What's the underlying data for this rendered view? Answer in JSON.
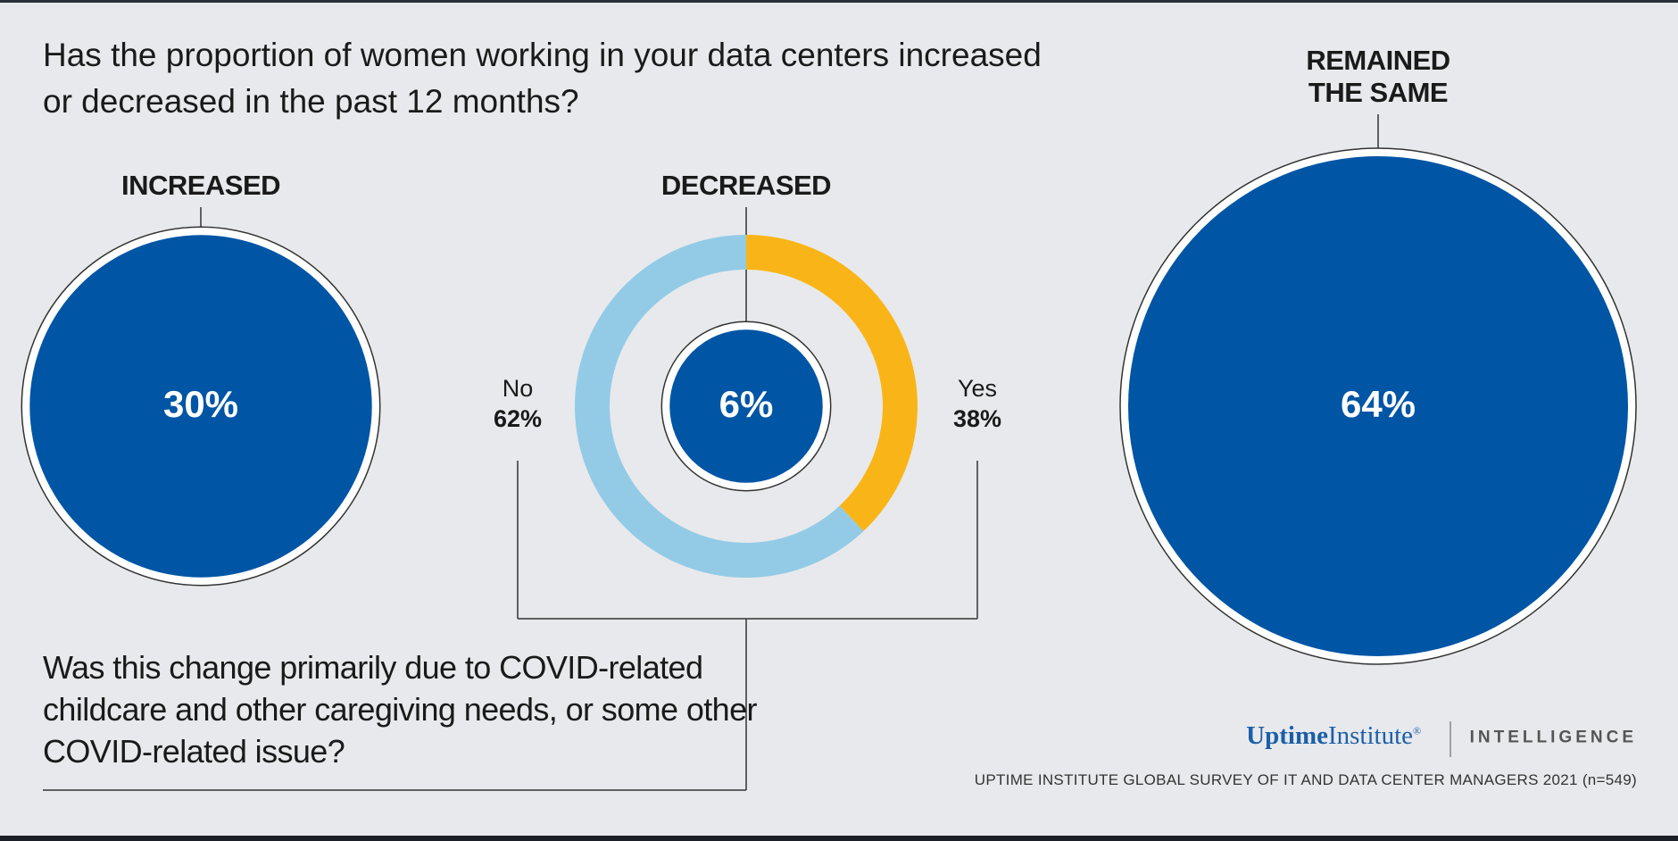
{
  "chart_data": [
    {
      "type": "bubble",
      "title": "Has the proportion of women working in your data centers increased or decreased in the past 12 months?",
      "categories": [
        "INCREASED",
        "DECREASED",
        "REMAINED THE SAME"
      ],
      "values": [
        30,
        6,
        64
      ],
      "value_labels": [
        "30%",
        "6%",
        "64%"
      ],
      "color": "#0055a5"
    },
    {
      "type": "pie",
      "title": "Was this change primarily due to COVID-related childcare and other caregiving needs, or some other COVID-related issue?",
      "categories": [
        "No",
        "Yes"
      ],
      "values": [
        62,
        38
      ],
      "value_labels": [
        "62%",
        "38%"
      ],
      "colors": [
        "#93cbe7",
        "#f9b518"
      ]
    }
  ],
  "footer": {
    "brand": "Uptime",
    "brand_suffix": "Institute",
    "mark": "®",
    "division": "INTELLIGENCE",
    "source": "UPTIME INSTITUTE GLOBAL SURVEY OF IT AND DATA CENTER MANAGERS 2021 (n=549)"
  }
}
